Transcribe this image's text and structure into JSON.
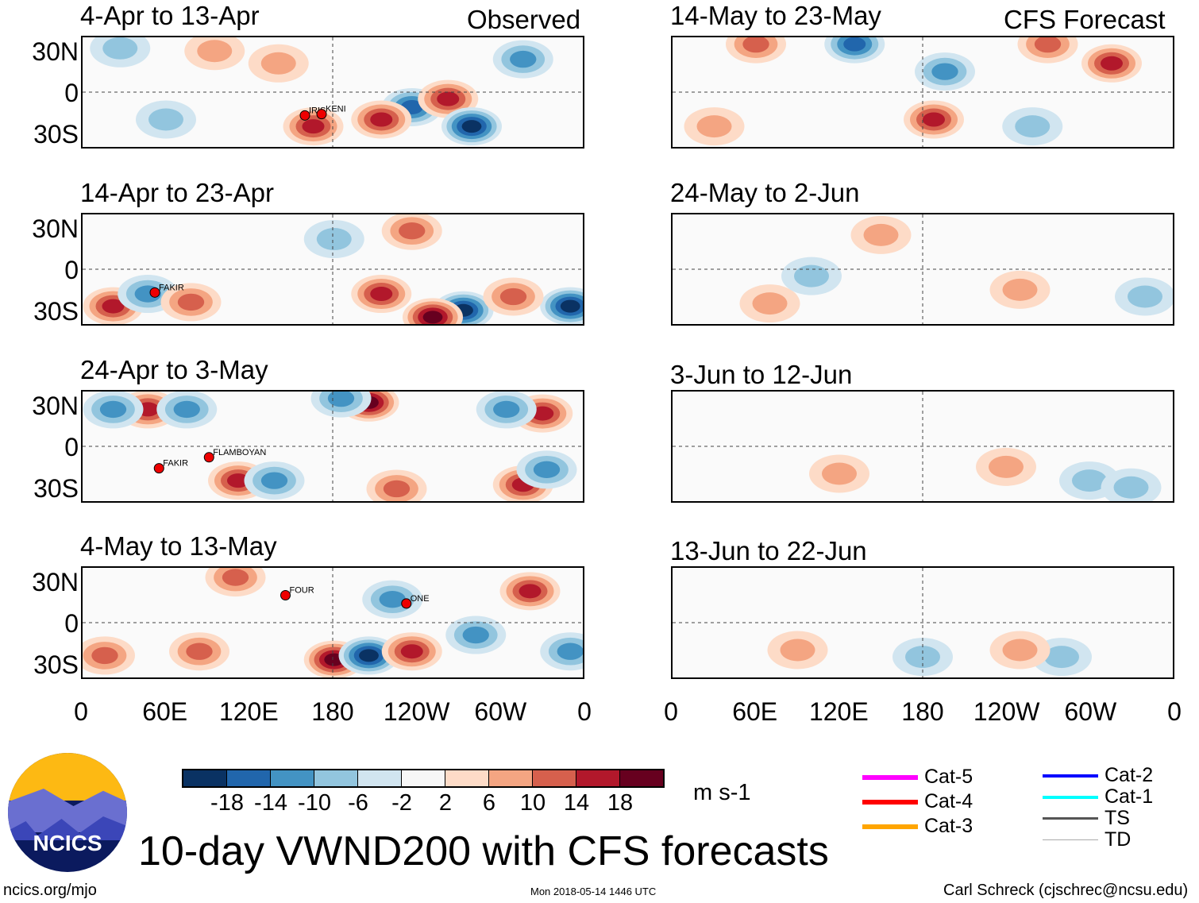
{
  "title": "10-day VWND200 with CFS forecasts",
  "footer": {
    "left": "ncics.org/mjo",
    "center": "Mon 2018-05-14 1446 UTC",
    "right": "Carl Schreck (cjschrec@ncsu.edu)"
  },
  "logo_text": "NCICS",
  "column_labels": {
    "observed": "Observed",
    "forecast": "CFS Forecast"
  },
  "lat_labels": [
    "30N",
    "0",
    "30S"
  ],
  "lon_labels": [
    "0",
    "60E",
    "120E",
    "180",
    "120W",
    "60W",
    "0"
  ],
  "units": "m s-1",
  "colorbar": {
    "colors": [
      "#0a3263",
      "#2166ac",
      "#4393c3",
      "#92c5de",
      "#d1e5f0",
      "#f7f7f7",
      "#fddbc7",
      "#f4a582",
      "#d6604d",
      "#b2182b",
      "#67001f"
    ],
    "ticks": [
      "-18",
      "-14",
      "-10",
      "-6",
      "-2",
      "2",
      "6",
      "10",
      "14",
      "18"
    ]
  },
  "legend": [
    {
      "label": "Cat-5",
      "color": "#ff00ff"
    },
    {
      "label": "Cat-4",
      "color": "#ff0000"
    },
    {
      "label": "Cat-3",
      "color": "#ffa500"
    },
    {
      "label": "Cat-2",
      "color": "#0000ff"
    },
    {
      "label": "Cat-1",
      "color": "#00ffff"
    },
    {
      "label": "TS",
      "color": "#555555"
    },
    {
      "label": "TD",
      "color": "#aaaaaa"
    }
  ],
  "chart_data": {
    "type": "heatmap",
    "variable": "200-hPa meridional wind anomaly (m s-1)",
    "lon_range": [
      0,
      360
    ],
    "lat_range": [
      -40,
      40
    ],
    "panels": [
      {
        "label": "4-Apr to 13-Apr",
        "source": "observed",
        "anomalies": [
          {
            "lon": 166,
            "lat": -25,
            "v": 14
          },
          {
            "lon": 237,
            "lat": -11,
            "v": -14
          },
          {
            "lon": 263,
            "lat": -5,
            "v": 14
          },
          {
            "lon": 280,
            "lat": -25,
            "v": -18
          },
          {
            "lon": 215,
            "lat": -20,
            "v": 14
          },
          {
            "lon": 317,
            "lat": 24,
            "v": -8
          },
          {
            "lon": 141,
            "lat": 21,
            "v": 6
          },
          {
            "lon": 27,
            "lat": 32,
            "v": -6
          },
          {
            "lon": 60,
            "lat": -20,
            "v": -6
          },
          {
            "lon": 95,
            "lat": 30,
            "v": 6
          }
        ],
        "storms": [
          {
            "name": "IRIS",
            "lon": 160,
            "lat": -17
          },
          {
            "name": "KENI",
            "lon": 172,
            "lat": -16
          }
        ]
      },
      {
        "label": "14-Apr to 23-Apr",
        "source": "observed",
        "anomalies": [
          {
            "lon": 22,
            "lat": -27,
            "v": 14
          },
          {
            "lon": 47,
            "lat": -18,
            "v": -10
          },
          {
            "lon": 78,
            "lat": -24,
            "v": 8
          },
          {
            "lon": 215,
            "lat": -18,
            "v": 14
          },
          {
            "lon": 274,
            "lat": -30,
            "v": -18
          },
          {
            "lon": 252,
            "lat": -35,
            "v": 18
          },
          {
            "lon": 351,
            "lat": -27,
            "v": -18
          },
          {
            "lon": 237,
            "lat": 28,
            "v": 10
          },
          {
            "lon": 181,
            "lat": 22,
            "v": -6
          },
          {
            "lon": 310,
            "lat": -20,
            "v": 10
          }
        ],
        "storms": [
          {
            "name": "FAKIR",
            "lon": 52,
            "lat": -17
          }
        ]
      },
      {
        "label": "24-Apr to 3-May",
        "source": "observed",
        "anomalies": [
          {
            "lon": 206,
            "lat": 32,
            "v": 18
          },
          {
            "lon": 186,
            "lat": 35,
            "v": -10
          },
          {
            "lon": 47,
            "lat": 27,
            "v": 14
          },
          {
            "lon": 22,
            "lat": 27,
            "v": -10
          },
          {
            "lon": 75,
            "lat": 27,
            "v": -8
          },
          {
            "lon": 112,
            "lat": -25,
            "v": 14
          },
          {
            "lon": 138,
            "lat": -25,
            "v": -10
          },
          {
            "lon": 331,
            "lat": 24,
            "v": 14
          },
          {
            "lon": 305,
            "lat": 27,
            "v": -10
          },
          {
            "lon": 317,
            "lat": -28,
            "v": 14
          },
          {
            "lon": 334,
            "lat": -17,
            "v": -10
          },
          {
            "lon": 226,
            "lat": -31,
            "v": 10
          }
        ],
        "storms": [
          {
            "name": "FLAMBOYAN",
            "lon": 91,
            "lat": -8
          },
          {
            "name": "FAKIR",
            "lon": 55,
            "lat": -16
          }
        ]
      },
      {
        "label": "4-May to 13-May",
        "source": "observed",
        "anomalies": [
          {
            "lon": 181,
            "lat": -27,
            "v": 18
          },
          {
            "lon": 206,
            "lat": -24,
            "v": -18
          },
          {
            "lon": 237,
            "lat": -21,
            "v": 14
          },
          {
            "lon": 84,
            "lat": -21,
            "v": 10
          },
          {
            "lon": 322,
            "lat": 23,
            "v": 14
          },
          {
            "lon": 223,
            "lat": 17,
            "v": -10
          },
          {
            "lon": 16,
            "lat": -24,
            "v": 10
          },
          {
            "lon": 283,
            "lat": -9,
            "v": -8
          },
          {
            "lon": 351,
            "lat": -21,
            "v": -8
          },
          {
            "lon": 110,
            "lat": 33,
            "v": 8
          }
        ],
        "storms": [
          {
            "name": "FOUR",
            "lon": 146,
            "lat": 20
          },
          {
            "name": "ONE",
            "lon": 233,
            "lat": 14
          }
        ]
      },
      {
        "label": "14-May to 23-May",
        "source": "forecast",
        "anomalies": [
          {
            "lon": 188,
            "lat": -20,
            "v": 14
          },
          {
            "lon": 131,
            "lat": 35,
            "v": -14
          },
          {
            "lon": 316,
            "lat": 21,
            "v": 14
          },
          {
            "lon": 196,
            "lat": 15,
            "v": -8
          },
          {
            "lon": 270,
            "lat": 35,
            "v": 10
          },
          {
            "lon": 259,
            "lat": -25,
            "v": -6
          },
          {
            "lon": 60,
            "lat": 35,
            "v": 8
          },
          {
            "lon": 30,
            "lat": -25,
            "v": 6
          }
        ],
        "storms": []
      },
      {
        "label": "24-May to 2-Jun",
        "source": "forecast",
        "anomalies": [
          {
            "lon": 70,
            "lat": -25,
            "v": 6
          },
          {
            "lon": 100,
            "lat": -5,
            "v": -4
          },
          {
            "lon": 250,
            "lat": -15,
            "v": 4
          },
          {
            "lon": 340,
            "lat": -20,
            "v": -6
          },
          {
            "lon": 150,
            "lat": 25,
            "v": 4
          }
        ],
        "storms": []
      },
      {
        "label": "3-Jun to 12-Jun",
        "source": "forecast",
        "anomalies": [
          {
            "lon": 120,
            "lat": -20,
            "v": 4
          },
          {
            "lon": 300,
            "lat": -25,
            "v": -4
          },
          {
            "lon": 240,
            "lat": -15,
            "v": 4
          },
          {
            "lon": 330,
            "lat": -30,
            "v": -4
          }
        ],
        "storms": []
      },
      {
        "label": "13-Jun to 22-Jun",
        "source": "forecast",
        "anomalies": [
          {
            "lon": 90,
            "lat": -20,
            "v": 4
          },
          {
            "lon": 280,
            "lat": -25,
            "v": -4
          },
          {
            "lon": 250,
            "lat": -20,
            "v": 4
          },
          {
            "lon": 180,
            "lat": -25,
            "v": -3
          }
        ],
        "storms": []
      }
    ]
  }
}
